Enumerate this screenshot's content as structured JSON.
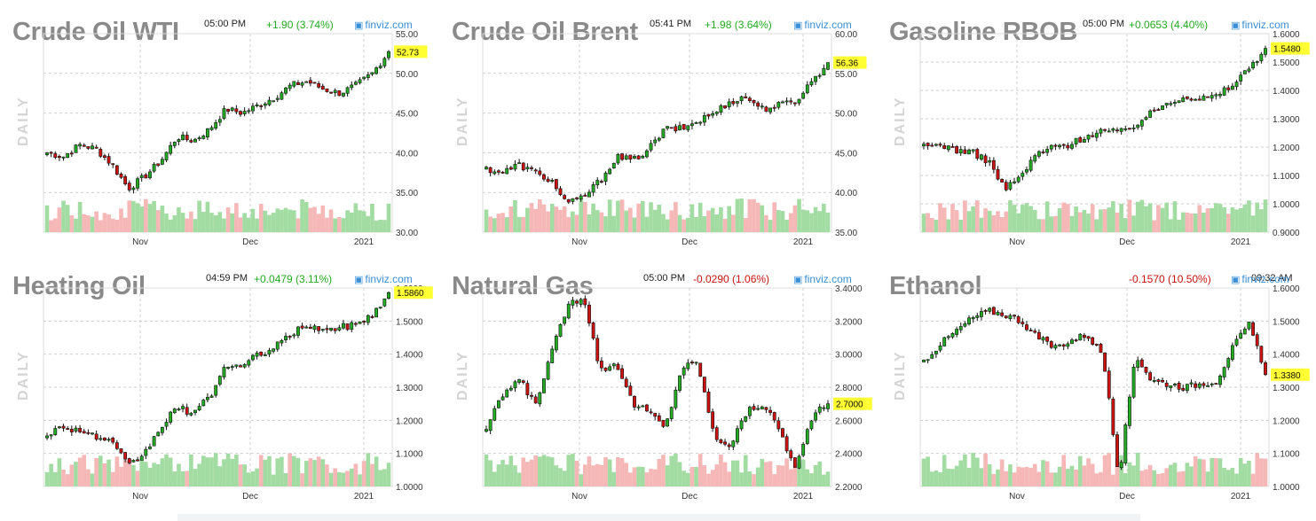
{
  "colors": {
    "up": "#22aa22",
    "down": "#cc1111",
    "vol_up": "#a3dca3",
    "vol_down": "#f6b7b7",
    "last_bg": "#ffff33",
    "brand": "#3a8fd6",
    "grid": "#cfcfcf"
  },
  "timeframe_label": "DAILY",
  "brand": {
    "icon": "finviz-icon",
    "text": "finviz.com"
  },
  "x_labels": [
    "Nov",
    "Dec",
    "2021"
  ],
  "chart_data": [
    {
      "type": "candlestick",
      "title": "Crude Oil WTI",
      "time": "05:00 PM",
      "change": "+1.90 (3.74%)",
      "change_dir": "up",
      "last": "52.73",
      "last_value": 52.73,
      "ylim": [
        30,
        55
      ],
      "yticks": [
        "55.00",
        "50.00",
        "45.00",
        "40.00",
        "35.00",
        "30.00"
      ],
      "anchors": [
        40.0,
        39.5,
        41.0,
        40.5,
        38.5,
        35.5,
        37.0,
        39.0,
        42.0,
        41.5,
        43.0,
        45.5,
        45.0,
        46.0,
        47.0,
        48.5,
        49.0,
        48.0,
        47.5,
        48.5,
        50.0,
        52.73
      ]
    },
    {
      "type": "candlestick",
      "title": "Crude Oil Brent",
      "time": "05:41 PM",
      "change": "+1.98 (3.64%)",
      "change_dir": "up",
      "last": "56.36",
      "last_value": 56.36,
      "ylim": [
        35,
        60
      ],
      "yticks": [
        "60.00",
        "55.00",
        "50.00",
        "45.00",
        "40.00",
        "35.00"
      ],
      "anchors": [
        43.0,
        42.5,
        43.5,
        42.5,
        41.5,
        38.5,
        39.5,
        41.5,
        44.5,
        44.0,
        45.5,
        48.0,
        48.0,
        49.0,
        50.0,
        51.5,
        52.0,
        50.5,
        51.0,
        51.5,
        54.0,
        56.36
      ]
    },
    {
      "type": "candlestick",
      "title": "Gasoline RBOB",
      "time": "05:00 PM",
      "change": "+0.0653 (4.40%)",
      "change_dir": "up",
      "last": "1.5480",
      "last_value": 1.548,
      "ylim": [
        0.9,
        1.6
      ],
      "yticks": [
        "1.6000",
        "1.5000",
        "1.4000",
        "1.3000",
        "1.2000",
        "1.1000",
        "1.0000",
        "0.9000"
      ],
      "anchors": [
        1.2,
        1.21,
        1.19,
        1.18,
        1.15,
        1.05,
        1.1,
        1.18,
        1.2,
        1.21,
        1.24,
        1.26,
        1.25,
        1.28,
        1.32,
        1.36,
        1.38,
        1.37,
        1.38,
        1.42,
        1.48,
        1.548
      ]
    },
    {
      "type": "candlestick",
      "title": "Heating Oil",
      "time": "04:59 PM",
      "change": "+0.0479 (3.11%)",
      "change_dir": "up",
      "last": "1.5860",
      "last_value": 1.586,
      "ylim": [
        1.0,
        1.6
      ],
      "yticks": [
        "1.6000",
        "1.5000",
        "1.4000",
        "1.3000",
        "1.2000",
        "1.1000",
        "1.0000"
      ],
      "anchors": [
        1.16,
        1.18,
        1.17,
        1.15,
        1.13,
        1.06,
        1.1,
        1.18,
        1.24,
        1.22,
        1.27,
        1.37,
        1.36,
        1.4,
        1.42,
        1.46,
        1.49,
        1.47,
        1.48,
        1.49,
        1.52,
        1.586
      ]
    },
    {
      "type": "candlestick",
      "title": "Natural Gas",
      "time": "05:00 PM",
      "change": "-0.0290 (1.06%)",
      "change_dir": "down",
      "last": "2.7000",
      "last_value": 2.7,
      "ylim": [
        2.2,
        3.4
      ],
      "yticks": [
        "3.4000",
        "3.2000",
        "3.0000",
        "2.8000",
        "2.6000",
        "2.4000",
        "2.2000"
      ],
      "anchors": [
        2.55,
        2.75,
        2.85,
        2.7,
        3.0,
        3.3,
        3.35,
        2.9,
        2.95,
        2.7,
        2.65,
        2.55,
        2.92,
        2.95,
        2.5,
        2.45,
        2.65,
        2.7,
        2.55,
        2.3,
        2.62,
        2.7
      ]
    },
    {
      "type": "candlestick",
      "title": "Ethanol",
      "time": "09:32 AM",
      "change": "-0.1570 (10.50%)",
      "change_dir": "down",
      "last": "1.3380",
      "last_value": 1.338,
      "ylim": [
        1.0,
        1.6
      ],
      "yticks": [
        "1.6000",
        "1.5000",
        "1.4000",
        "1.3000",
        "1.2000",
        "1.1000",
        "1.0000"
      ],
      "anchors": [
        1.38,
        1.43,
        1.47,
        1.51,
        1.53,
        1.52,
        1.5,
        1.45,
        1.42,
        1.44,
        1.46,
        1.4,
        1.03,
        1.4,
        1.32,
        1.31,
        1.3,
        1.31,
        1.32,
        1.42,
        1.49,
        1.338
      ]
    }
  ]
}
